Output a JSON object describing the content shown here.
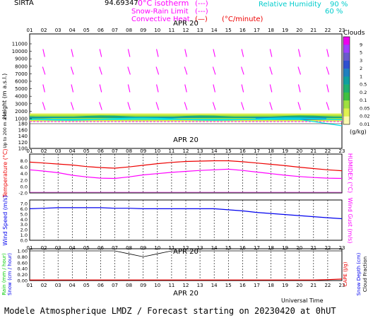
{
  "header": {
    "site": "SIRTA",
    "coords": "94.69347",
    "legend_iso": "0°C isotherm",
    "legend_snow": "Snow-Rain Limit",
    "legend_conv": "Convective Heat",
    "legend_conv_unit": "(°C/minute)",
    "rh_label": "Relative Humidity",
    "rh_90": "90 %",
    "rh_60": "60 %"
  },
  "colors": {
    "magenta": "#ff00ff",
    "cyan": "#00e5ee",
    "red": "#ee0000",
    "blue": "#0000ee",
    "green": "#00cc00",
    "black": "#000000"
  },
  "footer": {
    "text": "Modele Atmospherique LMDZ / Forecast starting on 20230420 at 0hUT",
    "universal_time": "Universal Time"
  },
  "chart_data": [
    {
      "type": "heatmap",
      "panel": "clouds_winds",
      "date_label": "APR 20",
      "x_ticks": [
        "01",
        "02",
        "03",
        "04",
        "05",
        "06",
        "07",
        "08",
        "09",
        "10",
        "11",
        "12",
        "13",
        "14",
        "15",
        "16",
        "17",
        "18",
        "19",
        "20",
        "21",
        "22",
        "23"
      ],
      "ylabel": "Height (m a.s.l.)",
      "ylabel_low": "Up to 200 m a.s.l.",
      "y_ticks_upper": [
        1000,
        2000,
        3000,
        4000,
        5000,
        6000,
        7000,
        8000,
        9000,
        10000,
        11000
      ],
      "y_ticks_lower": [
        100,
        120,
        140,
        160,
        180
      ],
      "colorbar": {
        "title": "Clouds",
        "unit": "(g/kg)",
        "labels": [
          "9",
          "5",
          "3",
          "2",
          "1",
          "0.5",
          "0.2",
          "0.1",
          "0.05",
          "0.02",
          "0.01"
        ],
        "colors": [
          "#ee00ee",
          "#a040ff",
          "#6a5acd",
          "#3050d0",
          "#2080c0",
          "#10a0a0",
          "#20b070",
          "#40c040",
          "#a0e040",
          "#e0f050",
          "#fbfbb0"
        ]
      },
      "cloud_layer_m": [
        1000,
        1700
      ]
    },
    {
      "type": "line",
      "panel": "temperature",
      "x_ticks": [
        "01",
        "02",
        "03",
        "04",
        "05",
        "06",
        "07",
        "08",
        "09",
        "10",
        "11",
        "12",
        "13",
        "14",
        "15",
        "16",
        "17",
        "18",
        "19",
        "20",
        "21",
        "22",
        "23"
      ],
      "ylabel": "Temperature (°C)",
      "ylabel_right": "HUMIDEX (°C)",
      "y_ticks": [
        "-2.0",
        "0.0",
        "2.0",
        "4.0",
        "6.0",
        "8.0"
      ],
      "ylim": [
        -2,
        9
      ],
      "series": [
        {
          "name": "Temperature",
          "color": "#ee0000",
          "values": [
            7.6,
            7.3,
            7.0,
            6.7,
            6.2,
            5.9,
            5.7,
            6.1,
            6.6,
            7.1,
            7.5,
            7.8,
            7.9,
            8.0,
            8.0,
            7.7,
            7.3,
            6.9,
            6.5,
            6.0,
            5.6,
            5.2,
            4.9
          ]
        },
        {
          "name": "HUMIDEX",
          "color": "#ff00ff",
          "values": [
            5.2,
            4.8,
            4.3,
            3.5,
            3.0,
            2.6,
            2.5,
            3.0,
            3.6,
            4.0,
            4.4,
            4.7,
            5.0,
            5.2,
            5.4,
            5.0,
            4.5,
            4.0,
            3.5,
            3.1,
            2.8,
            2.6,
            2.5
          ]
        }
      ]
    },
    {
      "type": "line",
      "panel": "wind",
      "x_ticks": [
        "01",
        "02",
        "03",
        "04",
        "05",
        "06",
        "07",
        "08",
        "09",
        "10",
        "11",
        "12",
        "13",
        "14",
        "15",
        "16",
        "17",
        "18",
        "19",
        "20",
        "21",
        "22",
        "23"
      ],
      "ylabel": "Wind Speed (m/s)",
      "ylabel_right": "Wind Gust (m/s)",
      "y_ticks": [
        "0.0",
        "1.0",
        "2.0",
        "3.0",
        "4.0",
        "5.0",
        "6.0",
        "7.0"
      ],
      "ylim": [
        0,
        7
      ],
      "series": [
        {
          "name": "Wind Speed",
          "color": "#0000ee",
          "values": [
            6.0,
            6.1,
            6.2,
            6.2,
            6.2,
            6.2,
            6.1,
            6.1,
            6.0,
            6.0,
            6.0,
            6.0,
            6.0,
            6.0,
            5.8,
            5.6,
            5.3,
            5.1,
            4.9,
            4.7,
            4.5,
            4.3,
            4.1
          ]
        }
      ]
    },
    {
      "type": "line",
      "panel": "precip",
      "date_label": "APR 20",
      "x_ticks": [
        "01",
        "02",
        "03",
        "04",
        "05",
        "06",
        "07",
        "08",
        "09",
        "10",
        "11",
        "12",
        "13",
        "14",
        "15",
        "16",
        "17",
        "18",
        "19",
        "20",
        "21",
        "22",
        "23"
      ],
      "ylabel": "Rain (mm / hour)",
      "ylabel2": "Snow (cm / hour)",
      "ylabel_right": "CAPE (J/g)",
      "ylabel_right2": "Snow Depth (cm)",
      "ylabel_right3": "Cloud Fraction",
      "y_ticks": [
        "0.00",
        "0.20",
        "0.40",
        "0.60",
        "0.80",
        "1.00"
      ],
      "ylim": [
        0,
        1
      ],
      "series": [
        {
          "name": "CAPE",
          "color": "#ee0000",
          "values": [
            0.02,
            0.02,
            0.02,
            0.02,
            0.02,
            0.02,
            0.02,
            0.02,
            0.02,
            0.02,
            0.02,
            0.02,
            0.02,
            0.02,
            0.02,
            0.02,
            0.02,
            0.02,
            0.02,
            0.02,
            0.02,
            0.03,
            0.05
          ]
        },
        {
          "name": "Cloud Fraction",
          "color": "#000000",
          "values": [
            1.0,
            1.0,
            1.0,
            1.0,
            1.0,
            1.0,
            1.0,
            0.9,
            0.8,
            0.9,
            1.0,
            1.0,
            1.0,
            1.0,
            1.0,
            1.0,
            1.0,
            1.0,
            1.0,
            1.0,
            1.0,
            1.0,
            1.0
          ]
        }
      ]
    }
  ]
}
